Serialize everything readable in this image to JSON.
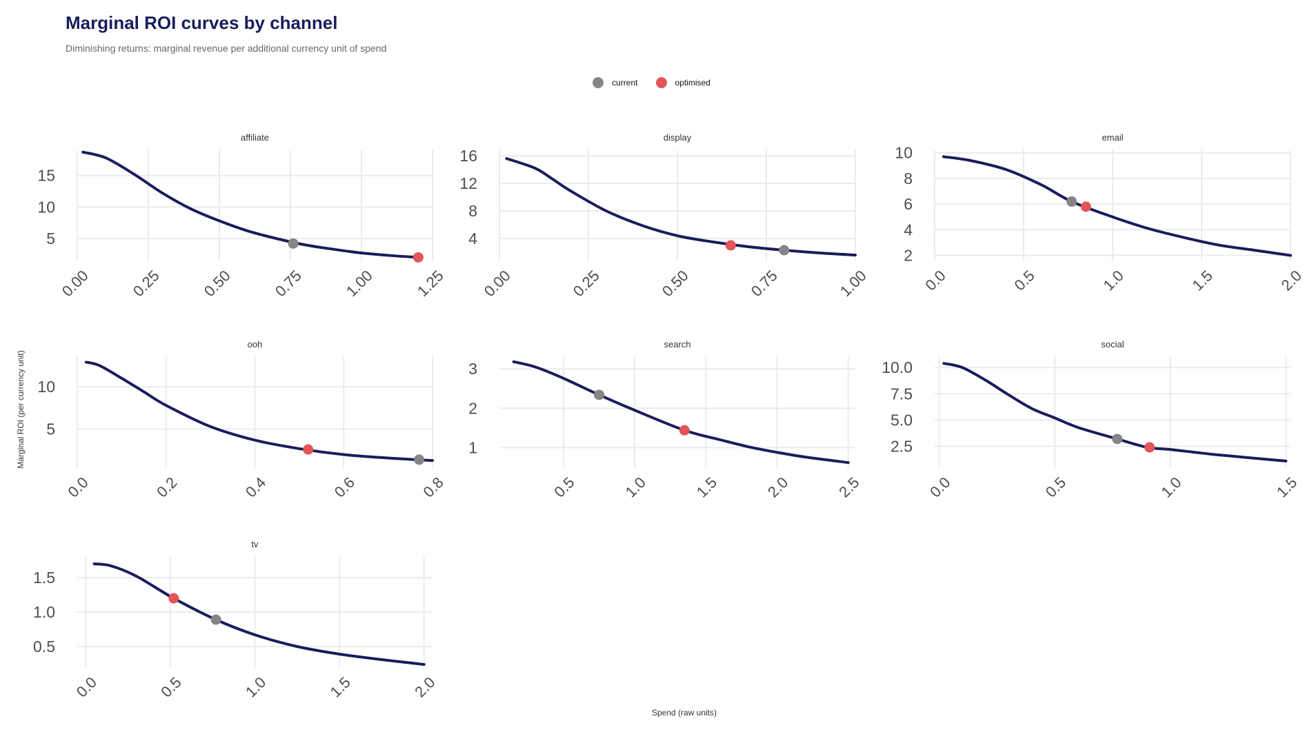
{
  "title": "Marginal ROI curves by channel",
  "subtitle": "Diminishing returns: marginal revenue per additional currency unit of spend",
  "legend": [
    {
      "label": "current",
      "color": "#858585"
    },
    {
      "label": "optimised",
      "color": "#e25558"
    }
  ],
  "colors": {
    "curve": "#191c5c",
    "grid": "#ebebeb",
    "current": "#858585",
    "optimised": "#e25558"
  },
  "xlabel": "Spend (raw units)",
  "ylabel": "Marginal ROI (per currency unit)",
  "chart_data": [
    {
      "type": "line",
      "title": "affiliate",
      "xlim": [
        0,
        1.25
      ],
      "xticks": [
        "0.00",
        "0.25",
        "0.50",
        "0.75",
        "1.00",
        "1.25"
      ],
      "ylim": [
        1.5,
        19
      ],
      "yticks": [
        "5",
        "10",
        "15"
      ],
      "series": [
        {
          "x": [
            0.02,
            0.1,
            0.2,
            0.3,
            0.4,
            0.5,
            0.6,
            0.7,
            0.8,
            0.9,
            1.0,
            1.1,
            1.2
          ],
          "values": [
            18.7,
            17.8,
            15.2,
            12.2,
            9.7,
            7.8,
            6.2,
            5.0,
            4.0,
            3.3,
            2.7,
            2.3,
            2.0
          ]
        }
      ],
      "current": {
        "x": 0.76,
        "y": 4.2
      },
      "optimised": {
        "x": 1.2,
        "y": 2.0
      }
    },
    {
      "type": "line",
      "title": "display",
      "xlim": [
        0,
        1.0
      ],
      "xticks": [
        "0.00",
        "0.25",
        "0.50",
        "0.75",
        "1.00"
      ],
      "ylim": [
        0.8,
        16.8
      ],
      "yticks": [
        "4",
        "8",
        "12",
        "16"
      ],
      "series": [
        {
          "x": [
            0.02,
            0.1,
            0.15,
            0.2,
            0.3,
            0.4,
            0.5,
            0.6,
            0.7,
            0.8,
            0.9,
            1.0
          ],
          "values": [
            15.6,
            14.2,
            12.6,
            10.9,
            8.0,
            5.9,
            4.4,
            3.5,
            2.8,
            2.3,
            1.9,
            1.6
          ]
        }
      ],
      "current": {
        "x": 0.8,
        "y": 2.3
      },
      "optimised": {
        "x": 0.65,
        "y": 3.0
      }
    },
    {
      "type": "line",
      "title": "email",
      "xlim": [
        0,
        2.0
      ],
      "xticks": [
        "0.0",
        "0.5",
        "1.0",
        "1.5",
        "2.0"
      ],
      "ylim": [
        1.6,
        10.2
      ],
      "yticks": [
        "2",
        "4",
        "6",
        "8",
        "10"
      ],
      "series": [
        {
          "x": [
            0.05,
            0.2,
            0.4,
            0.6,
            0.77,
            1.0,
            1.2,
            1.4,
            1.6,
            1.8,
            2.0
          ],
          "values": [
            9.7,
            9.4,
            8.7,
            7.5,
            6.2,
            5.0,
            4.1,
            3.4,
            2.8,
            2.4,
            2.0
          ]
        }
      ],
      "current": {
        "x": 0.77,
        "y": 6.2
      },
      "optimised": {
        "x": 0.85,
        "y": 5.8
      }
    },
    {
      "type": "line",
      "title": "ooh",
      "xlim": [
        0,
        0.8
      ],
      "xticks": [
        "0.0",
        "0.2",
        "0.4",
        "0.6",
        "0.8"
      ],
      "ylim": [
        0.5,
        13.5
      ],
      "yticks": [
        "5",
        "10"
      ],
      "series": [
        {
          "x": [
            0.02,
            0.05,
            0.1,
            0.15,
            0.2,
            0.3,
            0.4,
            0.5,
            0.6,
            0.7,
            0.8
          ],
          "values": [
            12.9,
            12.5,
            11.0,
            9.4,
            7.8,
            5.3,
            3.7,
            2.7,
            2.0,
            1.6,
            1.3
          ]
        }
      ],
      "current": {
        "x": 0.77,
        "y": 1.4
      },
      "optimised": {
        "x": 0.52,
        "y": 2.6
      }
    },
    {
      "type": "line",
      "title": "search",
      "xlim": [
        0.05,
        2.55
      ],
      "xticks": [
        "0.5",
        "1.0",
        "1.5",
        "2.0",
        "2.5"
      ],
      "ylim": [
        0.5,
        3.3
      ],
      "yticks": [
        "1",
        "2",
        "3"
      ],
      "series": [
        {
          "x": [
            0.15,
            0.3,
            0.5,
            0.75,
            1.0,
            1.35,
            1.6,
            1.8,
            2.0,
            2.2,
            2.5
          ],
          "values": [
            3.18,
            3.05,
            2.76,
            2.34,
            1.95,
            1.44,
            1.2,
            1.02,
            0.88,
            0.76,
            0.62
          ]
        }
      ],
      "current": {
        "x": 0.75,
        "y": 2.34
      },
      "optimised": {
        "x": 1.35,
        "y": 1.44
      }
    },
    {
      "type": "line",
      "title": "social",
      "xlim": [
        -0.02,
        1.52
      ],
      "xticks": [
        "0.0",
        "0.5",
        "1.0",
        "1.5"
      ],
      "ylim": [
        0.5,
        11.0
      ],
      "yticks": [
        "2.5",
        "5.0",
        "7.5",
        "10.0"
      ],
      "series": [
        {
          "x": [
            0.02,
            0.1,
            0.2,
            0.3,
            0.4,
            0.5,
            0.6,
            0.77,
            0.9,
            1.0,
            1.2,
            1.5
          ],
          "values": [
            10.4,
            10.0,
            8.8,
            7.4,
            6.1,
            5.2,
            4.3,
            3.2,
            2.4,
            2.2,
            1.7,
            1.1
          ]
        }
      ],
      "current": {
        "x": 0.77,
        "y": 3.2
      },
      "optimised": {
        "x": 0.91,
        "y": 2.4
      }
    },
    {
      "type": "line",
      "title": "tv",
      "xlim": [
        -0.05,
        2.05
      ],
      "xticks": [
        "0.0",
        "0.5",
        "1.0",
        "1.5",
        "2.0"
      ],
      "ylim": [
        0.2,
        1.8
      ],
      "yticks": [
        "0.5",
        "1.0",
        "1.5"
      ],
      "series": [
        {
          "x": [
            0.05,
            0.15,
            0.3,
            0.52,
            0.77,
            1.0,
            1.25,
            1.5,
            1.75,
            2.0
          ],
          "values": [
            1.7,
            1.67,
            1.52,
            1.2,
            0.89,
            0.67,
            0.5,
            0.39,
            0.31,
            0.24
          ]
        }
      ],
      "current": {
        "x": 0.77,
        "y": 0.89
      },
      "optimised": {
        "x": 0.52,
        "y": 1.2
      }
    }
  ]
}
